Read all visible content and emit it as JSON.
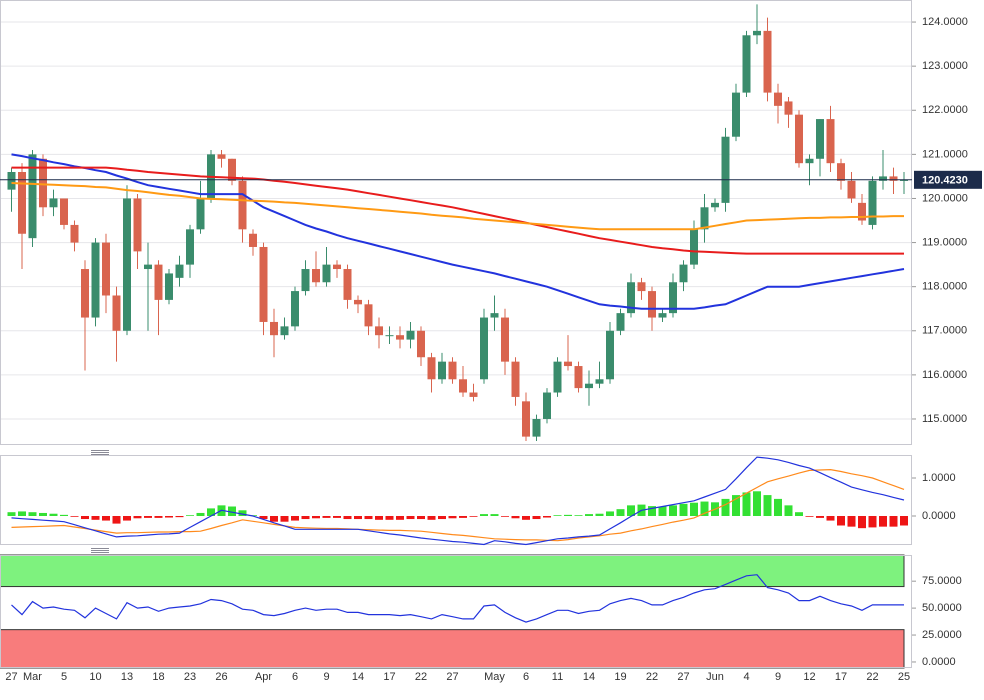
{
  "chart_data": [
    {
      "type": "candlestick",
      "categories": [
        "27",
        null,
        "Mar",
        null,
        null,
        "5",
        null,
        null,
        "10",
        null,
        null,
        "13",
        null,
        null,
        "18",
        null,
        null,
        "23",
        null,
        null,
        "26",
        null,
        null,
        null,
        "Apr",
        null,
        null,
        "6",
        null,
        null,
        "9",
        null,
        null,
        "14",
        null,
        null,
        "17",
        null,
        null,
        "22",
        null,
        null,
        "27",
        null,
        null,
        null,
        "May",
        null,
        null,
        "6",
        null,
        null,
        "11",
        null,
        null,
        "14",
        null,
        null,
        "19",
        null,
        null,
        "22",
        null,
        null,
        "27",
        null,
        null,
        "Jun",
        null,
        null,
        "4",
        null,
        null,
        "9",
        null,
        null,
        "12",
        null,
        null,
        "17",
        null,
        null,
        "22",
        null,
        null,
        "25"
      ],
      "open": [
        120.2,
        120.6,
        119.1,
        120.9,
        119.8,
        120.0,
        119.4,
        118.4,
        117.3,
        119.0,
        117.8,
        117.0,
        120.0,
        118.4,
        118.5,
        117.7,
        118.2,
        118.5,
        119.3,
        120.0,
        121.0,
        120.9,
        120.4,
        119.2,
        118.9,
        117.2,
        116.9,
        117.1,
        117.9,
        118.4,
        118.1,
        118.5,
        118.4,
        117.7,
        117.6,
        117.1,
        116.9,
        116.9,
        116.8,
        117.0,
        116.4,
        115.9,
        116.3,
        115.9,
        115.6,
        115.9,
        117.3,
        117.3,
        116.3,
        115.4,
        114.6,
        115.0,
        115.6,
        116.3,
        116.2,
        115.7,
        115.8,
        115.9,
        117.0,
        117.4,
        118.1,
        117.9,
        117.3,
        117.4,
        118.1,
        118.5,
        119.3,
        119.8,
        119.9,
        121.4,
        122.4,
        123.7,
        123.8,
        122.4,
        122.2,
        121.9,
        120.8,
        120.9,
        121.8,
        120.8,
        120.4,
        119.9,
        119.4,
        120.4,
        120.5,
        120.4
      ],
      "high": [
        120.7,
        120.8,
        121.1,
        121.0,
        120.2,
        120.0,
        119.5,
        118.6,
        119.1,
        119.2,
        118.0,
        120.3,
        120.1,
        119.0,
        118.6,
        118.4,
        118.7,
        119.4,
        120.4,
        121.1,
        121.1,
        120.9,
        120.5,
        119.3,
        119.0,
        117.5,
        117.3,
        118.0,
        118.6,
        118.8,
        118.9,
        118.6,
        118.5,
        117.8,
        117.7,
        117.3,
        117.1,
        117.1,
        117.2,
        117.1,
        116.5,
        116.5,
        116.4,
        116.2,
        115.8,
        117.5,
        117.8,
        117.5,
        116.4,
        115.6,
        115.1,
        115.7,
        116.4,
        116.9,
        116.3,
        116.1,
        116.3,
        117.2,
        117.5,
        118.3,
        118.2,
        118.0,
        117.5,
        118.3,
        118.6,
        119.5,
        120.1,
        120.0,
        121.6,
        122.6,
        123.8,
        124.4,
        124.1,
        122.6,
        122.3,
        122.0,
        121.0,
        121.8,
        122.1,
        120.9,
        120.6,
        120.1,
        120.5,
        121.1,
        120.7,
        120.6
      ],
      "low": [
        119.7,
        118.4,
        118.9,
        119.6,
        119.6,
        119.3,
        118.8,
        116.1,
        117.1,
        117.4,
        116.3,
        116.9,
        118.4,
        117.0,
        116.9,
        117.6,
        118.0,
        118.2,
        119.2,
        119.9,
        120.7,
        120.3,
        119.0,
        118.7,
        116.9,
        116.4,
        116.8,
        117.0,
        117.8,
        118.0,
        118.0,
        118.2,
        117.5,
        117.4,
        116.9,
        116.6,
        116.7,
        116.6,
        116.6,
        116.2,
        115.6,
        115.8,
        115.8,
        115.5,
        115.4,
        115.8,
        117.0,
        116.0,
        115.3,
        114.5,
        114.5,
        114.9,
        115.5,
        116.1,
        115.6,
        115.3,
        115.7,
        115.8,
        116.9,
        117.3,
        117.7,
        117.0,
        117.2,
        117.3,
        117.9,
        118.4,
        119.0,
        119.7,
        119.7,
        121.3,
        122.3,
        123.5,
        122.2,
        121.7,
        121.6,
        120.7,
        120.3,
        120.5,
        120.6,
        120.2,
        119.9,
        119.4,
        119.3,
        120.2,
        120.1,
        120.1
      ],
      "close": [
        120.6,
        119.2,
        121.0,
        119.8,
        120.0,
        119.4,
        119.0,
        117.3,
        119.0,
        117.8,
        117.0,
        120.0,
        118.8,
        118.5,
        117.7,
        118.3,
        118.5,
        119.3,
        120.0,
        121.0,
        120.9,
        120.4,
        119.3,
        118.9,
        117.2,
        116.9,
        117.1,
        117.9,
        118.4,
        118.1,
        118.5,
        118.4,
        117.7,
        117.6,
        117.1,
        116.9,
        116.9,
        116.8,
        117.0,
        116.4,
        115.9,
        116.3,
        115.9,
        115.6,
        115.5,
        117.3,
        117.4,
        116.3,
        115.5,
        114.6,
        115.0,
        115.6,
        116.3,
        116.2,
        115.7,
        115.8,
        115.9,
        117.0,
        117.4,
        118.1,
        117.9,
        117.3,
        117.4,
        118.1,
        118.5,
        119.3,
        119.8,
        119.9,
        121.4,
        122.4,
        123.7,
        123.8,
        122.4,
        122.1,
        121.9,
        120.8,
        120.9,
        121.8,
        120.8,
        120.4,
        120.0,
        119.5,
        120.4,
        120.5,
        120.4,
        120.42
      ],
      "up_color": "#3a8c6c",
      "down_color": "#d9644e",
      "lines": [
        {
          "color": "#2233dd",
          "values": [
            121.0,
            120.96,
            120.91,
            120.87,
            120.82,
            120.78,
            120.73,
            120.69,
            120.64,
            120.6,
            120.52,
            120.45,
            120.37,
            120.3,
            120.26,
            120.22,
            120.18,
            120.14,
            120.1,
            120.1,
            120.1,
            120.1,
            120.1,
            119.95,
            119.8,
            119.7,
            119.6,
            119.5,
            119.4,
            119.32,
            119.25,
            119.17,
            119.1,
            119.04,
            118.98,
            118.92,
            118.86,
            118.8,
            118.74,
            118.68,
            118.62,
            118.56,
            118.5,
            118.45,
            118.4,
            118.35,
            118.3,
            118.24,
            118.18,
            118.12,
            118.06,
            118.0,
            117.92,
            117.84,
            117.76,
            117.68,
            117.6,
            117.57,
            117.55,
            117.52,
            117.5,
            117.5,
            117.5,
            117.5,
            117.5,
            117.5,
            117.53,
            117.57,
            117.6,
            117.7,
            117.8,
            117.9,
            118.0,
            118.0,
            118.0,
            118.0,
            118.04,
            118.08,
            118.12,
            118.16,
            118.2,
            118.24,
            118.28,
            118.32,
            118.36,
            118.4
          ]
        },
        {
          "color": "#e81c1c",
          "values": [
            120.7,
            120.7,
            120.7,
            120.7,
            120.7,
            120.7,
            120.7,
            120.7,
            120.7,
            120.7,
            120.68,
            120.65,
            120.63,
            120.6,
            120.58,
            120.56,
            120.54,
            120.52,
            120.5,
            120.49,
            120.48,
            120.47,
            120.46,
            120.45,
            120.43,
            120.4,
            120.38,
            120.35,
            120.32,
            120.29,
            120.26,
            120.23,
            120.2,
            120.16,
            120.12,
            120.08,
            120.04,
            120.0,
            119.96,
            119.92,
            119.88,
            119.84,
            119.8,
            119.75,
            119.7,
            119.65,
            119.6,
            119.55,
            119.5,
            119.45,
            119.4,
            119.35,
            119.3,
            119.25,
            119.2,
            119.15,
            119.1,
            119.06,
            119.02,
            118.98,
            118.94,
            118.9,
            118.87,
            118.85,
            118.82,
            118.8,
            118.79,
            118.78,
            118.77,
            118.76,
            118.75,
            118.75,
            118.75,
            118.75,
            118.75,
            118.75,
            118.75,
            118.75,
            118.75,
            118.75,
            118.75,
            118.75,
            118.75,
            118.75,
            118.75,
            118.75
          ]
        },
        {
          "color": "#ff9a14",
          "values": [
            120.35,
            120.34,
            120.33,
            120.32,
            120.31,
            120.3,
            120.29,
            120.28,
            120.26,
            120.25,
            120.22,
            120.19,
            120.17,
            120.14,
            120.11,
            120.08,
            120.06,
            120.03,
            120.0,
            119.99,
            119.98,
            119.97,
            119.96,
            119.95,
            119.94,
            119.93,
            119.91,
            119.9,
            119.88,
            119.86,
            119.84,
            119.82,
            119.8,
            119.78,
            119.76,
            119.74,
            119.72,
            119.7,
            119.68,
            119.66,
            119.63,
            119.61,
            119.59,
            119.57,
            119.54,
            119.52,
            119.5,
            119.48,
            119.46,
            119.44,
            119.42,
            119.4,
            119.38,
            119.36,
            119.34,
            119.32,
            119.3,
            119.3,
            119.3,
            119.3,
            119.3,
            119.3,
            119.3,
            119.3,
            119.3,
            119.3,
            119.34,
            119.38,
            119.42,
            119.46,
            119.5,
            119.51,
            119.52,
            119.53,
            119.54,
            119.55,
            119.56,
            119.56,
            119.57,
            119.57,
            119.58,
            119.58,
            119.59,
            119.59,
            119.6,
            119.6
          ]
        }
      ],
      "last_price": {
        "value": 120.423,
        "label": "120.4230"
      },
      "last_price_color": "#1c2b4a",
      "ylim": [
        114.41,
        124.5
      ],
      "yticks": [
        {
          "value": 115,
          "label": "115.0000"
        },
        {
          "value": 116,
          "label": "116.0000"
        },
        {
          "value": 117,
          "label": "117.0000"
        },
        {
          "value": 118,
          "label": "118.0000"
        },
        {
          "value": 119,
          "label": "119.0000"
        },
        {
          "value": 120,
          "label": "120.0000"
        },
        {
          "value": 121,
          "label": "121.0000"
        },
        {
          "value": 122,
          "label": "122.0000"
        },
        {
          "value": 123,
          "label": "123.0000"
        },
        {
          "value": 124,
          "label": "124.0000"
        }
      ],
      "grid": true
    },
    {
      "type": "macd",
      "histogram": [
        0.1,
        0.12,
        0.1,
        0.08,
        0.06,
        0.03,
        -0.02,
        -0.08,
        -0.1,
        -0.12,
        -0.2,
        -0.12,
        -0.06,
        -0.05,
        -0.05,
        -0.04,
        -0.03,
        0.02,
        0.08,
        0.2,
        0.28,
        0.25,
        0.15,
        0.02,
        -0.08,
        -0.15,
        -0.15,
        -0.12,
        -0.08,
        -0.06,
        -0.05,
        -0.05,
        -0.08,
        -0.08,
        -0.08,
        -0.1,
        -0.1,
        -0.1,
        -0.08,
        -0.08,
        -0.1,
        -0.08,
        -0.06,
        -0.05,
        -0.02,
        0.05,
        0.05,
        -0.02,
        -0.06,
        -0.1,
        -0.08,
        -0.04,
        0.02,
        0.03,
        0.02,
        0.05,
        0.06,
        0.12,
        0.18,
        0.28,
        0.3,
        0.26,
        0.25,
        0.28,
        0.32,
        0.35,
        0.38,
        0.36,
        0.45,
        0.55,
        0.62,
        0.65,
        0.55,
        0.45,
        0.28,
        0.1,
        -0.02,
        -0.05,
        -0.12,
        -0.25,
        -0.28,
        -0.32,
        -0.3,
        -0.28,
        -0.28,
        -0.25
      ],
      "up_color": "#33e033",
      "down_color": "#ee1515",
      "macd": {
        "color": "#2233dd",
        "values": [
          -0.05,
          -0.07,
          -0.09,
          -0.11,
          -0.13,
          -0.15,
          -0.23,
          -0.31,
          -0.39,
          -0.47,
          -0.55,
          -0.53,
          -0.52,
          -0.5,
          -0.48,
          -0.47,
          -0.45,
          -0.3,
          -0.15,
          0.0,
          0.15,
          0.1,
          0.05,
          0.0,
          -0.09,
          -0.18,
          -0.26,
          -0.35,
          -0.35,
          -0.35,
          -0.35,
          -0.35,
          -0.35,
          -0.35,
          -0.39,
          -0.43,
          -0.47,
          -0.5,
          -0.54,
          -0.58,
          -0.61,
          -0.64,
          -0.67,
          -0.69,
          -0.72,
          -0.75,
          -0.65,
          -0.68,
          -0.72,
          -0.75,
          -0.7,
          -0.65,
          -0.6,
          -0.58,
          -0.55,
          -0.53,
          -0.5,
          -0.34,
          -0.18,
          -0.01,
          0.15,
          0.2,
          0.25,
          0.3,
          0.35,
          0.4,
          0.5,
          0.6,
          0.7,
          0.98,
          1.27,
          1.55,
          1.52,
          1.48,
          1.41,
          1.33,
          1.26,
          1.14,
          1.01,
          0.89,
          0.76,
          0.69,
          0.62,
          0.56,
          0.49,
          0.42
        ]
      },
      "signal": {
        "color": "#ff8a1c",
        "values": [
          -0.3,
          -0.29,
          -0.28,
          -0.27,
          -0.26,
          -0.25,
          -0.29,
          -0.33,
          -0.37,
          -0.41,
          -0.45,
          -0.44,
          -0.44,
          -0.43,
          -0.42,
          -0.42,
          -0.41,
          -0.41,
          -0.4,
          -0.33,
          -0.25,
          -0.18,
          -0.1,
          -0.14,
          -0.18,
          -0.22,
          -0.26,
          -0.3,
          -0.31,
          -0.32,
          -0.33,
          -0.33,
          -0.34,
          -0.35,
          -0.36,
          -0.37,
          -0.38,
          -0.38,
          -0.39,
          -0.4,
          -0.43,
          -0.46,
          -0.49,
          -0.51,
          -0.54,
          -0.57,
          -0.6,
          -0.61,
          -0.62,
          -0.63,
          -0.63,
          -0.64,
          -0.65,
          -0.62,
          -0.58,
          -0.55,
          -0.52,
          -0.48,
          -0.45,
          -0.39,
          -0.34,
          -0.28,
          -0.22,
          -0.16,
          -0.11,
          -0.05,
          0.07,
          0.18,
          0.3,
          0.45,
          0.6,
          0.75,
          0.9,
          0.98,
          1.05,
          1.13,
          1.2,
          1.21,
          1.22,
          1.17,
          1.11,
          1.06,
          1.0,
          0.9,
          0.8,
          0.7
        ]
      },
      "ylim": [
        -0.763,
        1.605
      ],
      "yticks": [
        {
          "value": 0,
          "label": "0.0000"
        },
        {
          "value": 1,
          "label": "1.0000"
        }
      ]
    },
    {
      "type": "rsi",
      "values": [
        53,
        44,
        56,
        50,
        51,
        49,
        48,
        41,
        50,
        45,
        40,
        55,
        50,
        51,
        47,
        50,
        51,
        52,
        54,
        58,
        57,
        54,
        49,
        48,
        44,
        43,
        45,
        48,
        50,
        48,
        49,
        49,
        46,
        46,
        44,
        44,
        44,
        43,
        44,
        42,
        40,
        44,
        42,
        40,
        40,
        52,
        53,
        46,
        41,
        37,
        40,
        44,
        48,
        48,
        45,
        47,
        48,
        54,
        57,
        59,
        57,
        53,
        53,
        57,
        60,
        64,
        67,
        68,
        72,
        76,
        80,
        81,
        69,
        67,
        64,
        57,
        57,
        61,
        57,
        54,
        52,
        48,
        53,
        53,
        53,
        53
      ],
      "color": "#2233dd",
      "upper_band": 70,
      "upper_color": "#7ef27e",
      "lower_band": 30,
      "lower_color": "#f87c7c",
      "ylim": [
        -5.6,
        99.3
      ],
      "yticks": [
        {
          "value": 0,
          "label": "0.0000"
        },
        {
          "value": 25,
          "label": "25.0000"
        },
        {
          "value": 50,
          "label": "50.0000"
        },
        {
          "value": 75,
          "label": "75.0000"
        }
      ]
    }
  ]
}
